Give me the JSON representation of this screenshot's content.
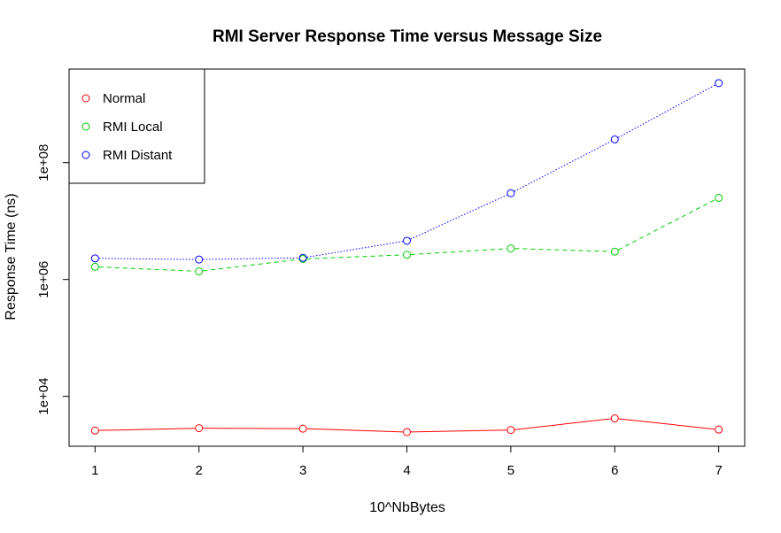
{
  "chart_data": {
    "type": "line",
    "title": "RMI Server Response Time versus Message Size",
    "xlabel": "10^NbBytes",
    "ylabel": "Response Time (ns)",
    "x": [
      1,
      2,
      3,
      4,
      5,
      6,
      7
    ],
    "xlim": [
      0.75,
      7.25
    ],
    "ylog": true,
    "ylim": [
      1400,
      4000000000
    ],
    "y_ticks": [
      {
        "value": 10000,
        "label": "1e+04"
      },
      {
        "value": 1000000,
        "label": "1e+06"
      },
      {
        "value": 100000000,
        "label": "1e+08"
      }
    ],
    "x_ticks": [
      {
        "value": 1,
        "label": "1"
      },
      {
        "value": 2,
        "label": "2"
      },
      {
        "value": 3,
        "label": "3"
      },
      {
        "value": 4,
        "label": "4"
      },
      {
        "value": 5,
        "label": "5"
      },
      {
        "value": 6,
        "label": "6"
      },
      {
        "value": 7,
        "label": "7"
      }
    ],
    "grid": false,
    "legend_position": "top-left",
    "series": [
      {
        "name": "Normal",
        "color": "#ff0000",
        "line_style": "solid",
        "values": [
          2600,
          2850,
          2800,
          2450,
          2650,
          4200,
          2700
        ]
      },
      {
        "name": "RMI Local",
        "color": "#00cd00",
        "line_style": "dashed",
        "values": [
          1650000,
          1380000,
          2250000,
          2650000,
          3400000,
          3000000,
          25000000
        ]
      },
      {
        "name": "RMI Distant",
        "color": "#0000ff",
        "line_style": "dotted",
        "values": [
          2300000,
          2200000,
          2350000,
          4600000,
          30000000,
          250000000,
          2300000000
        ]
      }
    ]
  }
}
